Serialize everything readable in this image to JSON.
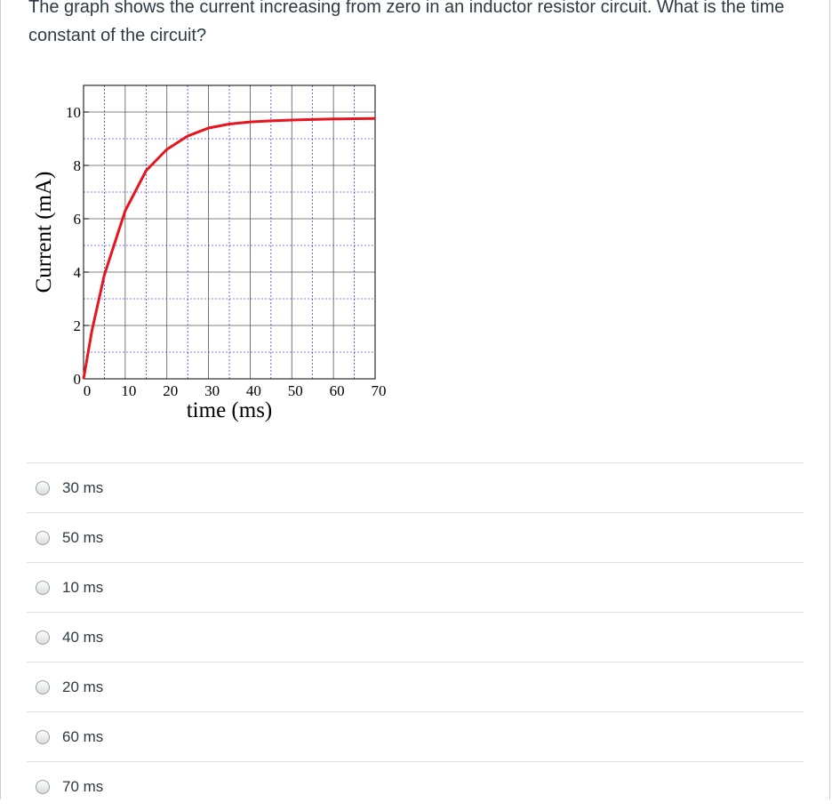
{
  "question": {
    "text": "The graph shows the current increasing from zero in an inductor resistor circuit.  What is the time constant of the circuit?"
  },
  "chart_data": {
    "type": "line",
    "xlabel": "time (ms)",
    "ylabel": "Current (mA)",
    "xlim": [
      0,
      70
    ],
    "ylim": [
      0,
      11
    ],
    "x_ticks": [
      "0",
      "10",
      "20",
      "30",
      "40",
      "50",
      "60",
      "70"
    ],
    "y_ticks": [
      "0",
      "2",
      "4",
      "6",
      "8",
      "10"
    ],
    "grid": true,
    "series": [
      {
        "color": "#e8141e",
        "x": [
          0,
          2,
          5,
          10,
          15,
          20,
          25,
          30,
          35,
          40,
          45,
          50,
          55,
          60,
          65,
          70
        ],
        "y": [
          0,
          1.8,
          3.9,
          6.3,
          7.8,
          8.6,
          9.1,
          9.4,
          9.55,
          9.63,
          9.67,
          9.7,
          9.72,
          9.74,
          9.75,
          9.76
        ]
      }
    ]
  },
  "answers": [
    {
      "label": "30 ms"
    },
    {
      "label": "50 ms"
    },
    {
      "label": "10 ms"
    },
    {
      "label": "40 ms"
    },
    {
      "label": "20 ms"
    },
    {
      "label": "60 ms"
    },
    {
      "label": "70 ms"
    }
  ],
  "colors": {
    "curve": "#e8141e",
    "text": "#2d3b45",
    "minor_grid": "#0000cc"
  }
}
